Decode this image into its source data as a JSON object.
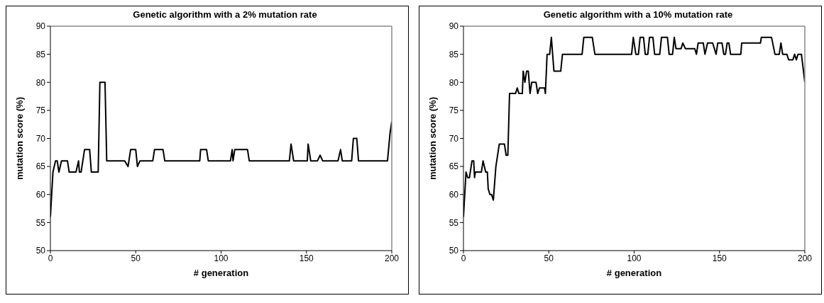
{
  "chart_data": [
    {
      "type": "line",
      "title": "Genetic algorithm with a 2% mutation rate",
      "xlabel": "# generation",
      "ylabel": "mutation score (%)",
      "color": "#000000",
      "xlim": [
        0,
        200
      ],
      "ylim": [
        50,
        90
      ],
      "xticks": [
        0,
        50,
        100,
        150,
        200
      ],
      "yticks": [
        50,
        55,
        60,
        65,
        70,
        75,
        80,
        85,
        90
      ],
      "x": [
        0,
        1.5,
        3,
        4,
        5,
        6.5,
        10,
        11,
        15,
        16.5,
        17,
        18,
        20,
        23,
        24,
        28,
        29,
        32,
        33,
        43.5,
        45.5,
        47,
        50,
        51,
        52.5,
        60,
        61,
        66,
        67,
        87.5,
        88,
        91.5,
        92.5,
        105.5,
        106.5,
        107,
        108,
        115.5,
        116.5,
        140,
        141,
        142.5,
        150.5,
        151,
        152.5,
        156.5,
        158,
        159.5,
        168.5,
        170,
        171,
        176.5,
        177.5,
        179.5,
        180.5,
        197.5,
        199,
        200
      ],
      "values": [
        56,
        64,
        66,
        66,
        64,
        66,
        66,
        64,
        64,
        66,
        64,
        64,
        68,
        68,
        64,
        64,
        80,
        80,
        66,
        66,
        65,
        68,
        68,
        65,
        66,
        66,
        68,
        68,
        66,
        66,
        68,
        68,
        66,
        66,
        68,
        66,
        68,
        68,
        66,
        66,
        69,
        66,
        66,
        69,
        66,
        66,
        67,
        66,
        66,
        68,
        66,
        66,
        70,
        70,
        66,
        66,
        71,
        73
      ]
    },
    {
      "type": "line",
      "title": "Genetic algorithm with a 10% mutation rate",
      "xlabel": "# generation",
      "ylabel": "mutation score (%)",
      "color": "#000000",
      "xlim": [
        0,
        200
      ],
      "ylim": [
        50,
        90
      ],
      "xticks": [
        0,
        50,
        100,
        150,
        200
      ],
      "yticks": [
        50,
        55,
        60,
        65,
        70,
        75,
        80,
        85,
        90
      ],
      "x": [
        0,
        1.5,
        2.5,
        3.5,
        5,
        6,
        6.5,
        7,
        10.5,
        11.5,
        13,
        14,
        14.5,
        15.5,
        16.5,
        17.5,
        18.5,
        19,
        21,
        24,
        25,
        26,
        27,
        30.5,
        31.5,
        32.5,
        34.5,
        35,
        36,
        37,
        38,
        39,
        40,
        42.5,
        43.5,
        44.5,
        47.5,
        48,
        49,
        50.5,
        51.5,
        53,
        57,
        58,
        69.5,
        70.5,
        75.5,
        77,
        98.5,
        99.5,
        101,
        102.5,
        103.5,
        105.5,
        106.5,
        108,
        109,
        111,
        112,
        115,
        116,
        119.5,
        120.5,
        122.5,
        123.5,
        124.5,
        127.5,
        128.5,
        130,
        135.5,
        136.5,
        137.5,
        140.5,
        141.5,
        143,
        146,
        148,
        149,
        151.5,
        152.5,
        153.5,
        154.5,
        155.5,
        156.5,
        162.5,
        163,
        174,
        174.5,
        180.5,
        182.5,
        185,
        186,
        187,
        189.5,
        190.5,
        193,
        194,
        195,
        196,
        198,
        200
      ],
      "values": [
        56,
        64,
        63,
        63,
        66,
        66,
        63,
        64,
        64,
        66,
        64,
        64,
        61,
        60,
        60,
        59,
        63,
        65,
        69,
        69,
        67,
        67,
        78,
        78,
        79,
        78,
        78,
        82,
        80,
        82,
        82,
        78,
        80,
        80,
        78,
        79,
        79,
        78,
        85,
        85,
        88,
        82,
        82,
        85,
        85,
        88,
        88,
        85,
        85,
        88,
        85,
        85,
        88,
        88,
        85,
        85,
        88,
        88,
        85,
        85,
        88,
        88,
        85,
        85,
        88,
        86,
        86,
        87,
        86,
        86,
        85,
        87,
        87,
        85,
        87,
        87,
        85,
        87,
        87,
        85,
        85,
        87,
        87,
        85,
        85,
        87,
        87,
        88,
        88,
        85,
        85,
        87,
        85,
        85,
        84,
        84,
        85,
        84,
        85,
        85,
        80
      ]
    }
  ]
}
